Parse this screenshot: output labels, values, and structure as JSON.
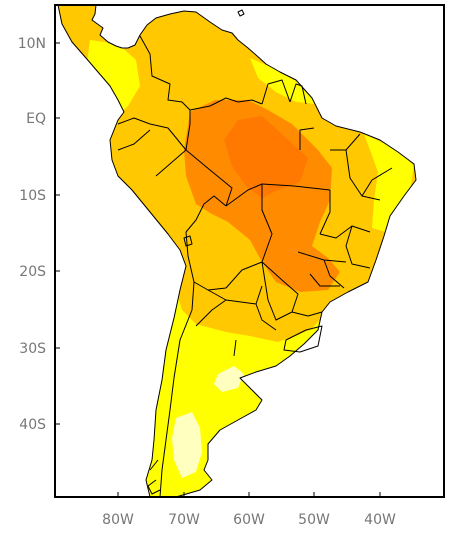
{
  "map": {
    "region": "South America",
    "lat_labels": [
      "10N",
      "EQ",
      "10S",
      "20S",
      "30S",
      "40S"
    ],
    "lon_labels": [
      "80W",
      "70W",
      "60W",
      "50W",
      "40W"
    ],
    "lon_range": [
      -90,
      -30
    ],
    "lat_range": [
      -50,
      15
    ],
    "legend": "none",
    "shading_colors": {
      "ocean": "#ffffff",
      "pale_yellow": "#ffffc0",
      "yellow": "#ffff00",
      "light_orange": "#ffc800",
      "orange": "#ff8c00",
      "dark_orange": "#ff7800"
    },
    "border_color": "#000000"
  }
}
